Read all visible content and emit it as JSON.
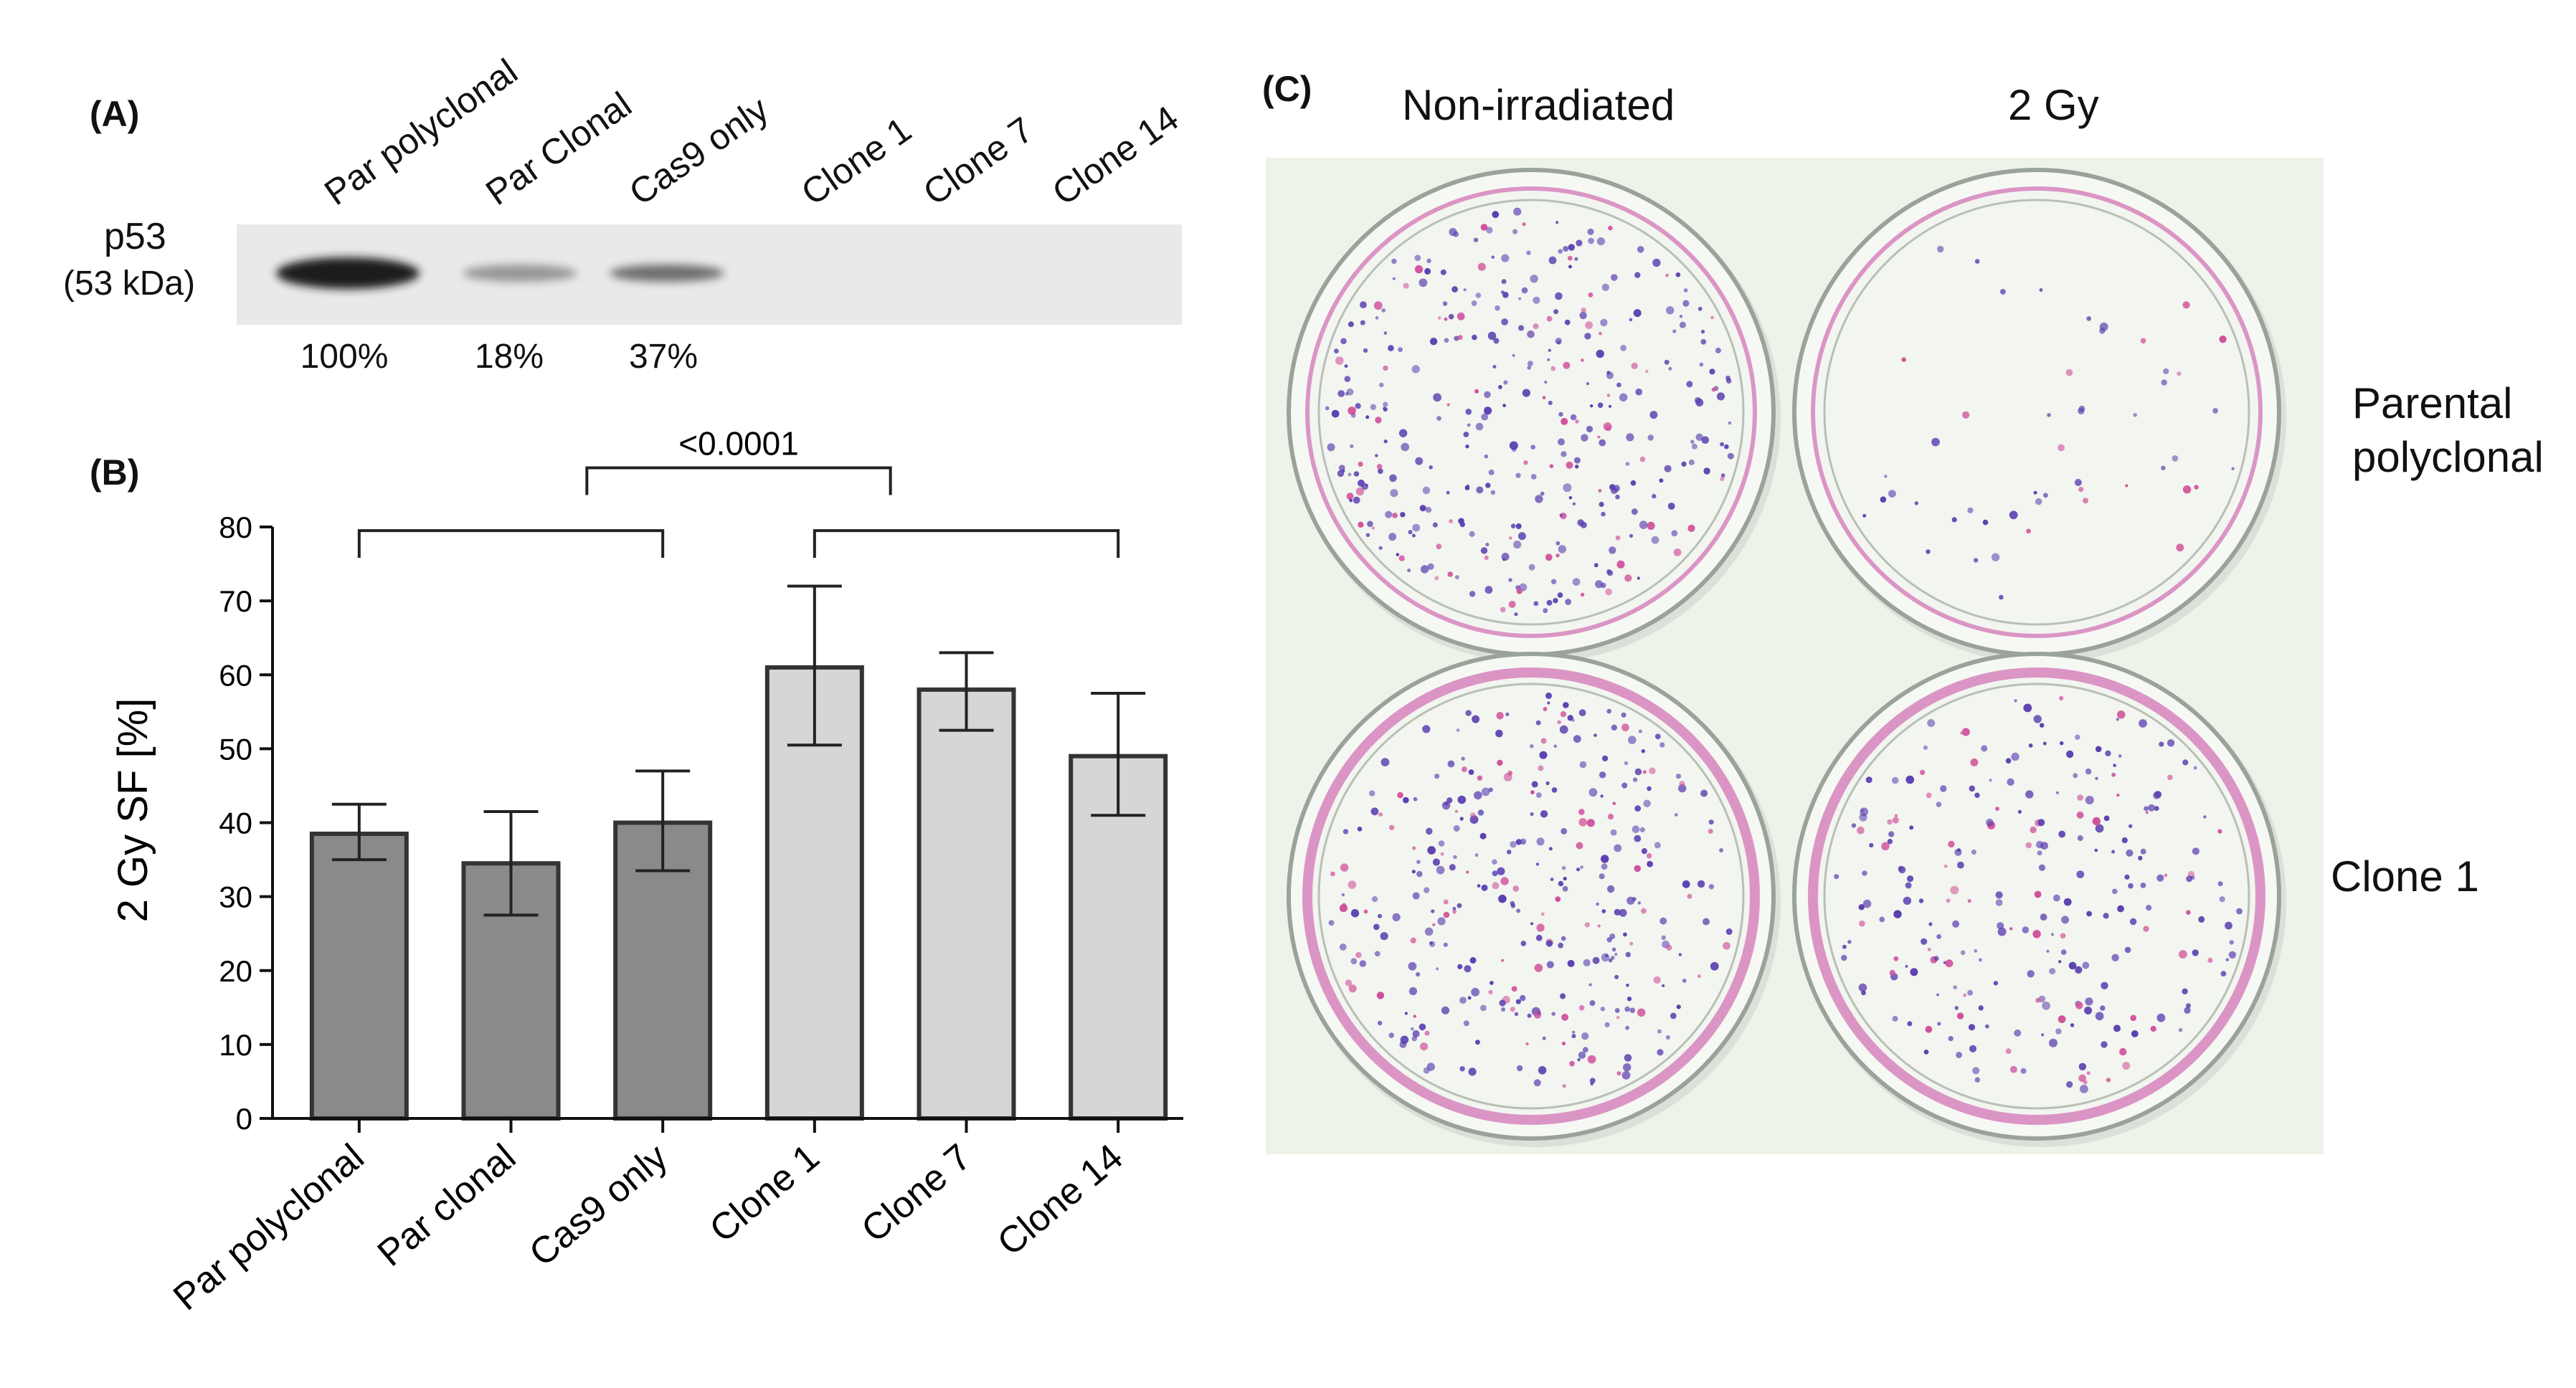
{
  "panel_a": {
    "label": "(A)",
    "protein": "p53",
    "kda": "(53 kDa)",
    "lanes": [
      {
        "name": "Par polyclonal",
        "pct": "100%",
        "intensity": 1.0
      },
      {
        "name": "Par  Clonal",
        "pct": "18%",
        "intensity": 0.18
      },
      {
        "name": "Cas9 only",
        "pct": "37%",
        "intensity": 0.37
      },
      {
        "name": "Clone 1",
        "pct": "",
        "intensity": 0
      },
      {
        "name": "Clone 7",
        "pct": "",
        "intensity": 0
      },
      {
        "name": "Clone 14",
        "pct": "",
        "intensity": 0
      }
    ]
  },
  "panel_b": {
    "label": "(B)"
  },
  "chart_data": {
    "type": "bar",
    "categories": [
      "Par polyclonal",
      "Par clonal",
      "Cas9 only",
      "Clone 1",
      "Clone 7",
      "Clone 14"
    ],
    "values": [
      38.5,
      34.5,
      40,
      61,
      58,
      49
    ],
    "error_low": [
      35,
      27.5,
      33.5,
      50.5,
      52.5,
      41
    ],
    "error_high": [
      42.5,
      41.5,
      47,
      72,
      63,
      57.5
    ],
    "bar_colors": [
      "#8a8a8a",
      "#8a8a8a",
      "#8a8a8a",
      "#d6d6d6",
      "#d6d6d6",
      "#d6d6d6"
    ],
    "ylabel": "2 Gy SF [%]",
    "ylim": [
      0,
      80
    ],
    "yticks": [
      0,
      10,
      20,
      30,
      40,
      50,
      60,
      70,
      80
    ],
    "brackets": [
      {
        "from": 0,
        "to": 2,
        "label": ""
      },
      {
        "from": 3,
        "to": 5,
        "label": ""
      },
      {
        "from": 1.5,
        "to": 3.5,
        "label": "<0.0001"
      }
    ]
  },
  "panel_c": {
    "label": "(C)",
    "col_labels": [
      "Non-irradiated",
      "2 Gy"
    ],
    "row_labels": [
      "Parental\npolyclonal",
      "Clone 1"
    ],
    "colony_density": [
      [
        0.85,
        0.12
      ],
      [
        0.8,
        0.6
      ]
    ],
    "colors": {
      "background": "#eef3ea",
      "colony": "#5b3fb0",
      "rim": "#d98bc0"
    }
  }
}
